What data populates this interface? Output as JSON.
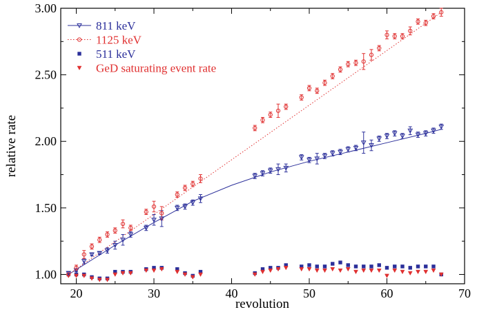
{
  "chart_data": {
    "type": "scatter",
    "title": "",
    "xlabel": "revolution",
    "ylabel": "relative rate",
    "xlim": [
      18,
      70
    ],
    "ylim": [
      0.93,
      3.0
    ],
    "xticks": [
      20,
      30,
      40,
      50,
      60,
      70
    ],
    "xtick_labels": [
      "20",
      "30",
      "40",
      "50",
      "60",
      "70"
    ],
    "yticks": [
      1.0,
      1.5,
      2.0,
      2.5,
      3.0
    ],
    "ytick_labels": [
      "1.00",
      "1.50",
      "2.00",
      "2.50",
      "3.00"
    ],
    "grid": false,
    "legend_position": "top-left",
    "series": [
      {
        "name": "811 keV",
        "color": "#2b2f9a",
        "marker": "triangle-down-open",
        "line": "solid",
        "x": [
          19,
          20,
          21,
          22,
          23,
          24,
          25,
          26,
          27,
          29,
          30,
          31,
          33,
          34,
          35,
          36,
          43,
          44,
          45,
          46,
          47,
          49,
          50,
          51,
          52,
          53,
          54,
          55,
          56,
          57,
          58,
          59,
          60,
          61,
          62,
          63,
          64,
          65,
          66,
          67
        ],
        "y": [
          1.01,
          1.03,
          1.1,
          1.15,
          1.16,
          1.18,
          1.22,
          1.26,
          1.3,
          1.35,
          1.41,
          1.42,
          1.5,
          1.51,
          1.54,
          1.57,
          1.74,
          1.76,
          1.78,
          1.79,
          1.8,
          1.88,
          1.86,
          1.87,
          1.89,
          1.91,
          1.92,
          1.94,
          1.95,
          1.99,
          1.97,
          2.02,
          2.04,
          2.06,
          2.04,
          2.08,
          2.05,
          2.06,
          2.08,
          2.11
        ],
        "err": [
          0.01,
          0.01,
          0.02,
          0.01,
          0.01,
          0.02,
          0.03,
          0.04,
          0.02,
          0.02,
          0.04,
          0.06,
          0.02,
          0.02,
          0.02,
          0.03,
          0.02,
          0.02,
          0.02,
          0.04,
          0.03,
          0.02,
          0.02,
          0.04,
          0.02,
          0.02,
          0.02,
          0.02,
          0.02,
          0.08,
          0.04,
          0.02,
          0.02,
          0.02,
          0.02,
          0.03,
          0.02,
          0.02,
          0.02,
          0.02
        ],
        "fit_x": [
          19,
          25,
          30,
          35,
          40,
          45,
          50,
          55,
          60,
          65,
          67
        ],
        "fit_y": [
          1.0,
          1.22,
          1.39,
          1.55,
          1.67,
          1.77,
          1.85,
          1.92,
          1.99,
          2.06,
          2.09
        ]
      },
      {
        "name": "1125 keV",
        "color": "#e03030",
        "marker": "circle-open",
        "line": "dotted",
        "x": [
          19,
          20,
          21,
          22,
          23,
          24,
          25,
          26,
          27,
          29,
          30,
          31,
          33,
          34,
          35,
          36,
          43,
          44,
          45,
          46,
          47,
          49,
          50,
          51,
          52,
          53,
          54,
          55,
          56,
          57,
          58,
          59,
          60,
          61,
          62,
          63,
          64,
          65,
          66,
          67
        ],
        "y": [
          1.0,
          1.05,
          1.15,
          1.21,
          1.26,
          1.3,
          1.33,
          1.38,
          1.35,
          1.47,
          1.51,
          1.46,
          1.6,
          1.65,
          1.68,
          1.72,
          2.1,
          2.16,
          2.2,
          2.23,
          2.26,
          2.33,
          2.4,
          2.38,
          2.44,
          2.49,
          2.54,
          2.58,
          2.59,
          2.6,
          2.65,
          2.7,
          2.8,
          2.79,
          2.79,
          2.83,
          2.9,
          2.89,
          2.94,
          2.97
        ],
        "err": [
          0.01,
          0.02,
          0.03,
          0.02,
          0.02,
          0.02,
          0.02,
          0.03,
          0.02,
          0.02,
          0.04,
          0.05,
          0.02,
          0.02,
          0.02,
          0.03,
          0.02,
          0.02,
          0.02,
          0.05,
          0.02,
          0.02,
          0.02,
          0.02,
          0.02,
          0.02,
          0.02,
          0.02,
          0.02,
          0.06,
          0.04,
          0.02,
          0.03,
          0.02,
          0.02,
          0.03,
          0.02,
          0.02,
          0.02,
          0.03
        ],
        "fit_x": [
          19,
          67
        ],
        "fit_y": [
          1.0,
          2.97
        ]
      },
      {
        "name": "511 keV",
        "color": "#2b2f9a",
        "marker": "square-filled",
        "line": "none",
        "x": [
          19,
          20,
          21,
          22,
          23,
          24,
          25,
          26,
          27,
          29,
          30,
          31,
          33,
          34,
          35,
          36,
          43,
          44,
          45,
          46,
          47,
          49,
          50,
          51,
          52,
          53,
          54,
          55,
          56,
          57,
          58,
          59,
          60,
          61,
          62,
          63,
          64,
          65,
          66,
          67
        ],
        "y": [
          1.0,
          1.0,
          1.0,
          0.98,
          0.97,
          0.97,
          1.02,
          1.02,
          1.02,
          1.04,
          1.05,
          1.05,
          1.04,
          1.01,
          0.99,
          1.02,
          1.01,
          1.04,
          1.05,
          1.05,
          1.07,
          1.06,
          1.07,
          1.06,
          1.06,
          1.08,
          1.09,
          1.07,
          1.06,
          1.06,
          1.06,
          1.07,
          1.05,
          1.06,
          1.06,
          1.05,
          1.06,
          1.06,
          1.06,
          1.0
        ]
      },
      {
        "name": "GeD saturating event rate",
        "color": "#e03030",
        "marker": "triangle-down-filled",
        "line": "none",
        "x": [
          19,
          20,
          21,
          22,
          23,
          24,
          25,
          26,
          27,
          29,
          30,
          31,
          33,
          34,
          35,
          36,
          43,
          44,
          45,
          46,
          47,
          49,
          50,
          51,
          52,
          53,
          54,
          55,
          56,
          57,
          58,
          59,
          60,
          61,
          62,
          63,
          64,
          65,
          66,
          67
        ],
        "y": [
          0.99,
          0.99,
          0.99,
          0.97,
          0.96,
          0.96,
          1.0,
          1.01,
          1.01,
          1.03,
          1.03,
          1.04,
          1.02,
          1.0,
          0.98,
          1.0,
          1.0,
          1.02,
          1.03,
          1.04,
          1.05,
          1.04,
          1.04,
          1.03,
          1.03,
          1.04,
          1.03,
          1.04,
          1.02,
          1.03,
          1.03,
          1.03,
          0.99,
          1.03,
          1.02,
          1.01,
          1.02,
          1.02,
          1.03,
          1.0
        ]
      }
    ]
  }
}
